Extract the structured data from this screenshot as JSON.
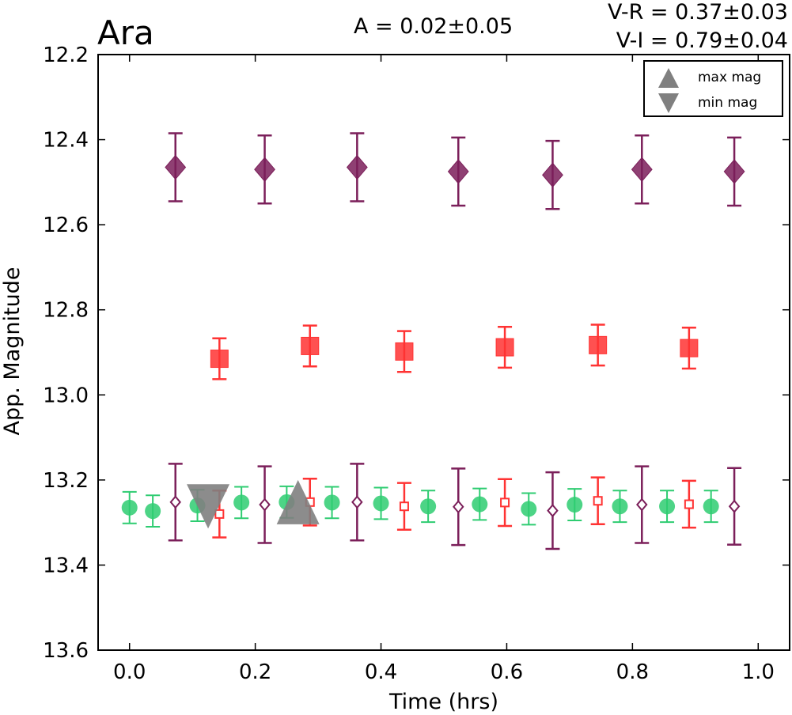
{
  "header": {
    "object_name": "Ara",
    "amplitude": "A  = 0.02±0.05",
    "color_vr": "V-R = 0.37±0.03",
    "color_vi": "V-I  = 0.79±0.04"
  },
  "legend": {
    "max_label": "max mag",
    "min_label": "min mag",
    "placement": "top-right"
  },
  "chart_data": {
    "type": "scatter",
    "xlabel": "Time (hrs)",
    "ylabel": "App. Magnitude",
    "xlim": [
      -0.05,
      1.05
    ],
    "ylim": [
      12.2,
      13.6
    ],
    "y_inverted": true,
    "grid": false,
    "xticks": [
      "0.0",
      "0.2",
      "0.4",
      "0.6",
      "0.8",
      "1.0"
    ],
    "yticks": [
      "12.2",
      "12.4",
      "12.6",
      "12.8",
      "13.0",
      "13.2",
      "13.4",
      "13.6"
    ],
    "colors": {
      "green": "#2ecc71",
      "red": "#ff3333",
      "purple": "#7b1f5a",
      "marker_gray": "#808080"
    },
    "series": [
      {
        "marker": "diamond",
        "color": "#7b1f5a",
        "filled": true,
        "x": [
          0.073,
          0.215,
          0.362,
          0.523,
          0.673,
          0.815,
          0.962
        ],
        "y": [
          12.465,
          12.47,
          12.465,
          12.475,
          12.483,
          12.47,
          12.475
        ],
        "yerr": [
          0.08,
          0.08,
          0.08,
          0.08,
          0.08,
          0.08,
          0.08
        ]
      },
      {
        "marker": "square",
        "color": "#ff3333",
        "filled": true,
        "x": [
          0.143,
          0.287,
          0.437,
          0.597,
          0.745,
          0.89
        ],
        "y": [
          12.915,
          12.885,
          12.898,
          12.888,
          12.883,
          12.89
        ],
        "yerr": [
          0.048,
          0.048,
          0.048,
          0.048,
          0.048,
          0.048
        ]
      },
      {
        "marker": "circle",
        "color": "#2ecc71",
        "filled": true,
        "x": [
          0.0,
          0.037,
          0.108,
          0.178,
          0.25,
          0.322,
          0.4,
          0.475,
          0.557,
          0.635,
          0.708,
          0.78,
          0.855,
          0.925
        ],
        "y": [
          13.265,
          13.273,
          13.26,
          13.253,
          13.252,
          13.253,
          13.255,
          13.262,
          13.257,
          13.268,
          13.258,
          13.262,
          13.262,
          13.262
        ],
        "yerr": [
          0.037,
          0.037,
          0.037,
          0.037,
          0.037,
          0.037,
          0.037,
          0.037,
          0.037,
          0.037,
          0.037,
          0.037,
          0.037,
          0.037
        ]
      },
      {
        "marker": "square",
        "color": "#ff3333",
        "filled": false,
        "x": [
          0.143,
          0.287,
          0.437,
          0.597,
          0.745,
          0.89
        ],
        "y": [
          13.28,
          13.252,
          13.262,
          13.253,
          13.249,
          13.257
        ],
        "yerr": [
          0.055,
          0.055,
          0.055,
          0.055,
          0.055,
          0.055
        ]
      },
      {
        "marker": "diamond",
        "color": "#7b1f5a",
        "filled": false,
        "x": [
          0.073,
          0.215,
          0.362,
          0.523,
          0.673,
          0.815,
          0.962
        ],
        "y": [
          13.252,
          13.258,
          13.252,
          13.263,
          13.272,
          13.258,
          13.262
        ],
        "yerr": [
          0.09,
          0.09,
          0.09,
          0.09,
          0.09,
          0.09,
          0.09
        ]
      }
    ],
    "extrema_markers": [
      {
        "kind": "min",
        "marker": "triangle-down",
        "color": "#808080",
        "x": 0.125,
        "y": 13.262
      },
      {
        "kind": "max",
        "marker": "triangle-up",
        "color": "#808080",
        "x": 0.268,
        "y": 13.252
      }
    ]
  }
}
